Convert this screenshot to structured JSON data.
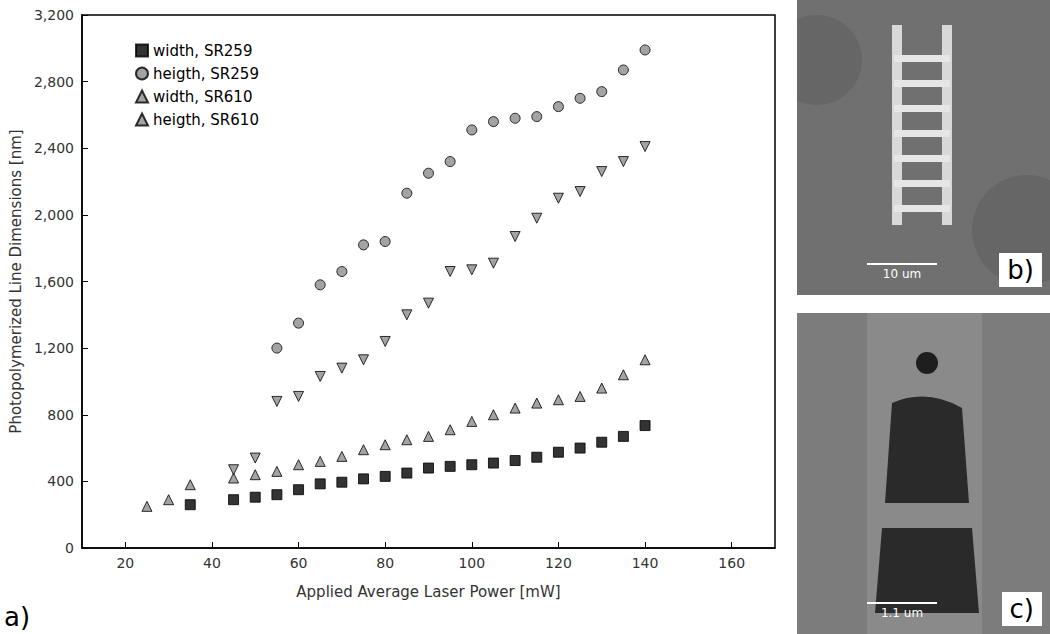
{
  "chart_data": {
    "type": "scatter",
    "annotations": [
      "a)"
    ],
    "x_label": "Applied Average Laser Power [mW]",
    "y_label": "Photopolymerized Line Dimensions [nm]",
    "xlim": [
      10,
      170
    ],
    "xticks": [
      20,
      40,
      60,
      80,
      100,
      120,
      140,
      160
    ],
    "ylim": [
      0,
      3200
    ],
    "yticks": [
      0,
      400,
      800,
      1200,
      1600,
      2000,
      2400,
      2800,
      3200
    ],
    "grid": false,
    "legend": "upper left",
    "series": [
      {
        "name": "width, SR259",
        "marker": "square",
        "color": "#000000",
        "x": [
          35,
          45,
          50,
          55,
          60,
          65,
          70,
          75,
          80,
          85,
          90,
          95,
          100,
          105,
          110,
          115,
          120,
          125,
          130,
          135,
          140
        ],
        "values": [
          260,
          290,
          305,
          320,
          350,
          385,
          395,
          415,
          430,
          450,
          480,
          490,
          500,
          510,
          525,
          545,
          575,
          600,
          635,
          670,
          735
        ]
      },
      {
        "name": "heigth, SR259",
        "marker": "circle",
        "color": "#8c8c8c",
        "x": [
          55,
          60,
          65,
          70,
          75,
          80,
          85,
          90,
          95,
          100,
          105,
          110,
          115,
          120,
          125,
          130,
          135,
          140
        ],
        "values": [
          1200,
          1350,
          1580,
          1660,
          1820,
          1840,
          2130,
          2250,
          2320,
          2510,
          2560,
          2580,
          2590,
          2650,
          2700,
          2740,
          2870,
          2990
        ]
      },
      {
        "name": "width, SR610",
        "marker": "triangle",
        "color": "#8c8c8c",
        "x": [
          25,
          30,
          35,
          45,
          50,
          55,
          60,
          65,
          70,
          75,
          80,
          85,
          90,
          95,
          100,
          105,
          110,
          115,
          120,
          125,
          130,
          135,
          140
        ],
        "values": [
          250,
          290,
          380,
          420,
          440,
          460,
          500,
          520,
          550,
          590,
          620,
          650,
          670,
          710,
          760,
          800,
          840,
          870,
          890,
          910,
          960,
          1040,
          1130
        ]
      },
      {
        "name": "heigth, SR610",
        "marker": "triangle-down",
        "color": "#8c8c8c",
        "x": [
          45,
          50,
          55,
          60,
          65,
          70,
          75,
          80,
          85,
          90,
          95,
          100,
          105,
          110,
          115,
          120,
          125,
          130,
          135,
          140
        ],
        "values": [
          470,
          540,
          880,
          910,
          1030,
          1080,
          1130,
          1240,
          1400,
          1470,
          1660,
          1670,
          1710,
          1870,
          1980,
          2100,
          2140,
          2260,
          2320,
          2410
        ]
      }
    ]
  },
  "images": [
    {
      "label": "b)",
      "scale_bar": "10 um"
    },
    {
      "label": "c)",
      "scale_bar": "1.1 um"
    }
  ]
}
